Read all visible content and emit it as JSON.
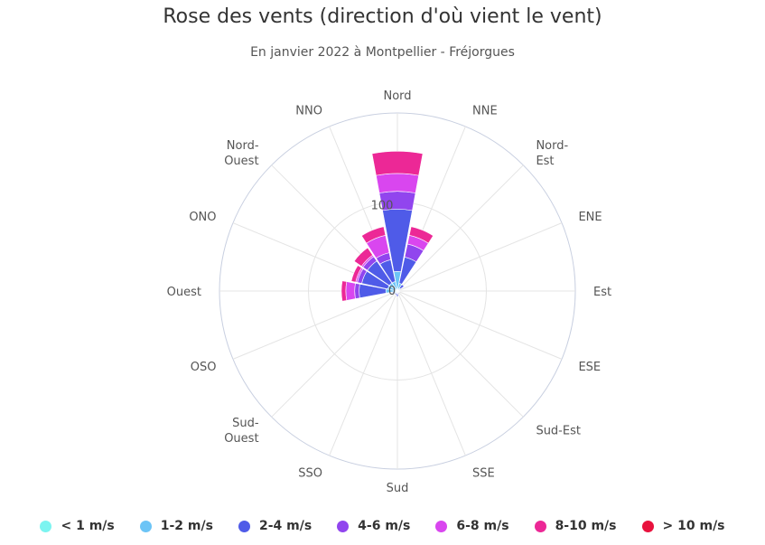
{
  "chart_data": {
    "type": "bar",
    "polar": true,
    "stacked": true,
    "title": "Rose des vents (direction d'où vient le vent)",
    "subtitle": "En janvier 2022 à Montpellier - Fréjorgues",
    "categories": [
      "Nord",
      "NNE",
      "Nord-Est",
      "ENE",
      "Est",
      "ESE",
      "Sud-Est",
      "SSE",
      "Sud",
      "SSO",
      "Sud-Ouest",
      "OSO",
      "Ouest",
      "ONO",
      "Nord-Ouest",
      "NNO"
    ],
    "category_lines": [
      [
        "Nord"
      ],
      [
        "NNE"
      ],
      [
        "Nord-",
        "Est"
      ],
      [
        "ENE"
      ],
      [
        "Est"
      ],
      [
        "ESE"
      ],
      [
        "Sud-Est"
      ],
      [
        "SSE"
      ],
      [
        "Sud"
      ],
      [
        "SSO"
      ],
      [
        "Sud-",
        "Ouest"
      ],
      [
        "OSO"
      ],
      [
        "Ouest"
      ],
      [
        "ONO"
      ],
      [
        "Nord-",
        "Ouest"
      ],
      [
        "NNO"
      ]
    ],
    "radial_tick_labels": [
      "0",
      "100"
    ],
    "radial_max": 200,
    "series": [
      {
        "name": "< 1 m/s",
        "color": "#7cf4f0",
        "values": [
          2,
          1,
          1,
          1,
          1,
          0.5,
          0.5,
          0.5,
          1,
          0.5,
          0.5,
          0.5,
          1,
          1,
          1,
          1
        ]
      },
      {
        "name": "1-2 m/s",
        "color": "#6cc4f6",
        "values": [
          20,
          8,
          3,
          1,
          1,
          1,
          1,
          1,
          2,
          2,
          3,
          3,
          12,
          10,
          10,
          10
        ]
      },
      {
        "name": "2-4 m/s",
        "color": "#4f5be8",
        "values": [
          70,
          30,
          5,
          1,
          1,
          1,
          1,
          2,
          3,
          2,
          1,
          2,
          30,
          30,
          30,
          25
        ]
      },
      {
        "name": "4-6 m/s",
        "color": "#9145ee",
        "values": [
          20,
          15,
          0,
          0,
          0,
          0,
          0,
          0,
          0,
          0,
          0,
          0,
          5,
          5,
          6,
          8
        ]
      },
      {
        "name": "6-8 m/s",
        "color": "#d946ef",
        "values": [
          20,
          10,
          0,
          0,
          0,
          0,
          0,
          0,
          0,
          0,
          0,
          0,
          10,
          2,
          2,
          20
        ]
      },
      {
        "name": "8-10 m/s",
        "color": "#ec2896",
        "values": [
          25,
          10,
          0,
          0,
          0,
          0,
          0,
          0,
          0,
          0,
          0,
          0,
          5,
          5,
          10,
          10
        ]
      },
      {
        "name": "> 10 m/s",
        "color": "#e8123d",
        "values": [
          0,
          0,
          0,
          0,
          0,
          0,
          0,
          0,
          0,
          0,
          0,
          0,
          0,
          0,
          0,
          0
        ]
      }
    ],
    "legend": "bottom"
  }
}
